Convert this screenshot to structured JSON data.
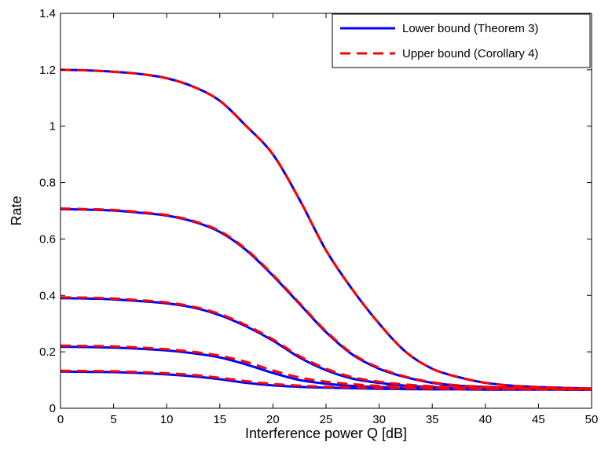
{
  "chart_data": {
    "type": "line",
    "xlabel": "Interference power Q [dB]",
    "ylabel": "Rate",
    "xlim": [
      0,
      50
    ],
    "ylim": [
      0,
      1.4
    ],
    "xticks": [
      0,
      5,
      10,
      15,
      20,
      25,
      30,
      35,
      40,
      45,
      50
    ],
    "yticks": [
      0,
      0.2,
      0.4,
      0.6,
      0.8,
      1,
      1.2,
      1.4
    ],
    "xtick_labels": [
      "0",
      "5",
      "10",
      "15",
      "20",
      "25",
      "30",
      "35",
      "40",
      "45",
      "50"
    ],
    "ytick_labels": [
      "0",
      "0.2",
      "0.4",
      "0.6",
      "0.8",
      "1",
      "1.2",
      "1.4"
    ],
    "grid": false,
    "legend_position": "top-right",
    "legend": [
      {
        "label": "Lower bound (Theorem 3)",
        "color": "#0000ff",
        "style": "solid"
      },
      {
        "label": "Upper bound (Corollary 4)",
        "color": "#ff0000",
        "style": "dashed"
      }
    ],
    "x": [
      0,
      2.5,
      5,
      7.5,
      10,
      12.5,
      15,
      17.5,
      20,
      22.5,
      25,
      27.5,
      30,
      32.5,
      35,
      37.5,
      40,
      42.5,
      45,
      47.5,
      50
    ],
    "curves": [
      {
        "lower": [
          1.2,
          1.198,
          1.193,
          1.185,
          1.17,
          1.14,
          1.09,
          1.0,
          0.9,
          0.74,
          0.56,
          0.42,
          0.3,
          0.2,
          0.14,
          0.11,
          0.09,
          0.08,
          0.075,
          0.072,
          0.07
        ],
        "upper": [
          1.2,
          1.198,
          1.193,
          1.185,
          1.17,
          1.14,
          1.09,
          1.0,
          0.9,
          0.74,
          0.56,
          0.42,
          0.3,
          0.2,
          0.14,
          0.11,
          0.09,
          0.08,
          0.075,
          0.072,
          0.07
        ]
      },
      {
        "lower": [
          0.706,
          0.704,
          0.701,
          0.693,
          0.683,
          0.662,
          0.625,
          0.56,
          0.47,
          0.37,
          0.27,
          0.19,
          0.14,
          0.11,
          0.09,
          0.08,
          0.075,
          0.072,
          0.07,
          0.069,
          0.068
        ],
        "upper": [
          0.708,
          0.706,
          0.703,
          0.695,
          0.685,
          0.664,
          0.628,
          0.563,
          0.473,
          0.373,
          0.273,
          0.193,
          0.143,
          0.112,
          0.092,
          0.081,
          0.076,
          0.073,
          0.071,
          0.07,
          0.069
        ]
      },
      {
        "lower": [
          0.39,
          0.389,
          0.386,
          0.38,
          0.372,
          0.357,
          0.33,
          0.29,
          0.24,
          0.18,
          0.135,
          0.105,
          0.09,
          0.08,
          0.075,
          0.072,
          0.07,
          0.069,
          0.068,
          0.068,
          0.067
        ],
        "upper": [
          0.393,
          0.392,
          0.389,
          0.383,
          0.375,
          0.36,
          0.334,
          0.294,
          0.244,
          0.185,
          0.14,
          0.11,
          0.094,
          0.084,
          0.078,
          0.075,
          0.072,
          0.071,
          0.07,
          0.069,
          0.068
        ]
      },
      {
        "lower": [
          0.218,
          0.217,
          0.215,
          0.211,
          0.205,
          0.195,
          0.18,
          0.155,
          0.125,
          0.1,
          0.087,
          0.079,
          0.075,
          0.072,
          0.07,
          0.069,
          0.068,
          0.067,
          0.067,
          0.066,
          0.066
        ],
        "upper": [
          0.222,
          0.221,
          0.219,
          0.215,
          0.209,
          0.2,
          0.186,
          0.164,
          0.134,
          0.109,
          0.094,
          0.085,
          0.079,
          0.076,
          0.073,
          0.071,
          0.07,
          0.069,
          0.068,
          0.067,
          0.067
        ]
      },
      {
        "lower": [
          0.13,
          0.129,
          0.128,
          0.125,
          0.12,
          0.113,
          0.103,
          0.09,
          0.081,
          0.076,
          0.073,
          0.071,
          0.069,
          0.068,
          0.067,
          0.067,
          0.066,
          0.066,
          0.066,
          0.066,
          0.066
        ],
        "upper": [
          0.133,
          0.132,
          0.131,
          0.128,
          0.124,
          0.118,
          0.108,
          0.096,
          0.086,
          0.08,
          0.076,
          0.074,
          0.072,
          0.071,
          0.07,
          0.069,
          0.068,
          0.068,
          0.067,
          0.067,
          0.067
        ]
      }
    ]
  }
}
